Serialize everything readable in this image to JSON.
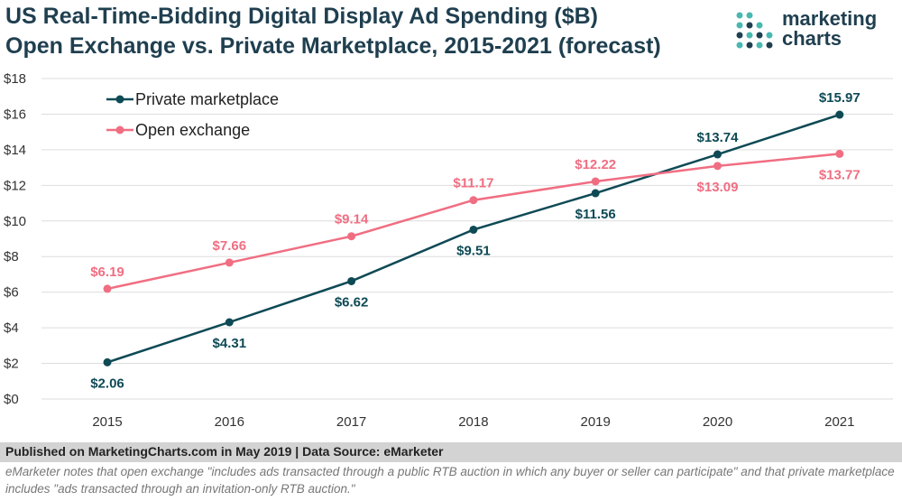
{
  "header": {
    "title": "US Real-Time-Bidding Digital Display Ad Spending ($B)",
    "subtitle": "Open Exchange vs. Private Marketplace, 2015-2021 (forecast)"
  },
  "logo": {
    "line1": "marketing",
    "line2": "charts"
  },
  "chart_data": {
    "type": "line",
    "title": "US Real-Time-Bidding Digital Display Ad Spending ($B)",
    "subtitle": "Open Exchange vs. Private Marketplace, 2015-2021 (forecast)",
    "x": [
      "2015",
      "2016",
      "2017",
      "2018",
      "2019",
      "2020",
      "2021"
    ],
    "series": [
      {
        "name": "Private marketplace",
        "color": "#0e4a55",
        "values": [
          2.06,
          4.31,
          6.62,
          9.51,
          11.56,
          13.74,
          15.97
        ],
        "labels": [
          "$2.06",
          "$4.31",
          "$6.62",
          "$9.51",
          "$11.56",
          "$13.74",
          "$15.97"
        ]
      },
      {
        "name": "Open exchange",
        "color": "#f06e82",
        "values": [
          6.19,
          7.66,
          9.14,
          11.17,
          12.22,
          13.09,
          13.77
        ],
        "labels": [
          "$6.19",
          "$7.66",
          "$9.14",
          "$11.17",
          "$12.22",
          "$13.09",
          "$13.77"
        ]
      }
    ],
    "ylim": [
      0,
      18
    ],
    "yticks": [
      0,
      2,
      4,
      6,
      8,
      10,
      12,
      14,
      16,
      18
    ],
    "ytick_labels": [
      "$0",
      "$2",
      "$4",
      "$6",
      "$8",
      "$10",
      "$12",
      "$14",
      "$16",
      "$18"
    ],
    "grid": true,
    "legend": "top-left"
  },
  "footer": {
    "source": "Published on MarketingCharts.com in May 2019 | Data Source: eMarketer",
    "note": "eMarketer notes that open exchange \"includes ads transacted through a public RTB auction in which any buyer or seller can participate\" and that private marketplace includes \"ads transacted through an invitation-only RTB auction.\""
  },
  "colors": {
    "title": "#1f3f4f",
    "grid": "#dddddd",
    "footer_bg": "#d3d3d3",
    "logo_dot_teal": "#49b8b0",
    "logo_dot_dark": "#1f3f4f"
  }
}
